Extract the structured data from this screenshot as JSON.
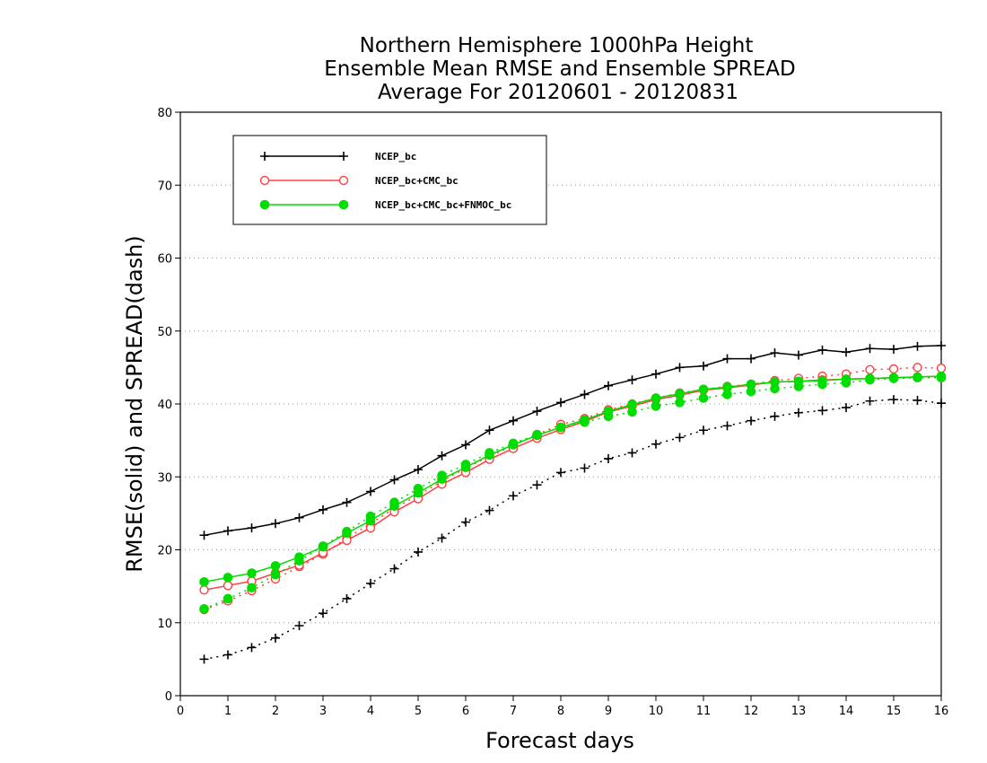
{
  "chart_data": {
    "type": "line",
    "title": [
      "Northern Hemisphere 1000hPa Height",
      "Ensemble Mean RMSE and Ensemble SPREAD",
      "Average For 20120601 - 20120831"
    ],
    "xlabel": "Forecast days",
    "ylabel": "RMSE(solid) and SPREAD(dash)",
    "xlim": [
      0,
      16
    ],
    "ylim": [
      0,
      80
    ],
    "xticks": [
      "0",
      "1",
      "2",
      "3",
      "4",
      "5",
      "6",
      "7",
      "8",
      "9",
      "10",
      "11",
      "12",
      "13",
      "14",
      "15",
      "16"
    ],
    "yticks": [
      "0",
      "10",
      "20",
      "30",
      "40",
      "50",
      "60",
      "70",
      "80"
    ],
    "grid": "horizontal dotted",
    "legend_position": "top-left",
    "x": [
      0.5,
      1,
      1.5,
      2,
      2.5,
      3,
      3.5,
      4,
      4.5,
      5,
      5.5,
      6,
      6.5,
      7,
      7.5,
      8,
      8.5,
      9,
      9.5,
      10,
      10.5,
      11,
      11.5,
      12,
      12.5,
      13,
      13.5,
      14,
      14.5,
      15,
      15.5,
      16
    ],
    "series": [
      {
        "name": "NCEP_bc",
        "color": "#000000",
        "marker": "plus",
        "rmse": [
          22.0,
          22.6,
          23.0,
          23.6,
          24.4,
          25.5,
          26.5,
          28.0,
          29.6,
          31.0,
          32.9,
          34.4,
          36.4,
          37.7,
          39.0,
          40.2,
          41.3,
          42.5,
          43.3,
          44.1,
          45.0,
          45.2,
          46.2,
          46.2,
          47.0,
          46.7,
          47.4,
          47.1,
          47.6,
          47.5,
          47.9,
          48.0
        ],
        "spread": [
          5.0,
          5.6,
          6.6,
          7.9,
          9.6,
          11.3,
          13.3,
          15.4,
          17.4,
          19.7,
          21.6,
          23.8,
          25.4,
          27.4,
          28.9,
          30.6,
          31.2,
          32.5,
          33.3,
          34.5,
          35.4,
          36.4,
          37.0,
          37.7,
          38.3,
          38.8,
          39.1,
          39.5,
          40.4,
          40.6,
          40.5,
          40.1
        ]
      },
      {
        "name": "NCEP_bc+CMC_bc",
        "color": "#ff4040",
        "marker": "open-circle",
        "rmse": [
          14.5,
          15.1,
          15.7,
          16.8,
          17.9,
          19.6,
          21.3,
          23.0,
          25.2,
          27.0,
          29.0,
          30.6,
          32.4,
          33.9,
          35.3,
          36.5,
          37.6,
          38.9,
          39.7,
          40.6,
          41.2,
          41.9,
          42.2,
          42.6,
          43.0,
          43.1,
          43.3,
          43.4,
          43.5,
          43.6,
          43.7,
          43.8
        ],
        "spread": [
          11.8,
          13.0,
          14.4,
          16.0,
          17.7,
          19.4,
          21.6,
          23.6,
          25.7,
          27.5,
          29.4,
          31.2,
          32.8,
          34.3,
          35.8,
          37.2,
          38.0,
          39.2,
          40.0,
          40.8,
          41.5,
          42.0,
          42.4,
          42.7,
          43.2,
          43.5,
          43.8,
          44.1,
          44.7,
          44.8,
          45.0,
          44.9
        ]
      },
      {
        "name": "NCEP_bc+CMC_bc+FNMOC_bc",
        "color": "#00dd00",
        "marker": "filled-circle",
        "rmse": [
          15.6,
          16.2,
          16.8,
          17.8,
          19.0,
          20.4,
          22.3,
          24.0,
          26.0,
          27.8,
          29.7,
          31.3,
          33.0,
          34.4,
          35.7,
          36.8,
          37.8,
          39.0,
          39.9,
          40.8,
          41.4,
          42.0,
          42.3,
          42.7,
          43.0,
          43.1,
          43.2,
          43.4,
          43.5,
          43.6,
          43.7,
          43.8
        ],
        "spread": [
          11.9,
          13.3,
          14.8,
          16.6,
          18.5,
          20.5,
          22.5,
          24.6,
          26.5,
          28.4,
          30.2,
          31.7,
          33.3,
          34.6,
          35.8,
          36.8,
          37.5,
          38.3,
          38.9,
          39.7,
          40.2,
          40.8,
          41.3,
          41.7,
          42.1,
          42.4,
          42.7,
          42.9,
          43.3,
          43.5,
          43.6,
          43.6
        ]
      }
    ]
  }
}
